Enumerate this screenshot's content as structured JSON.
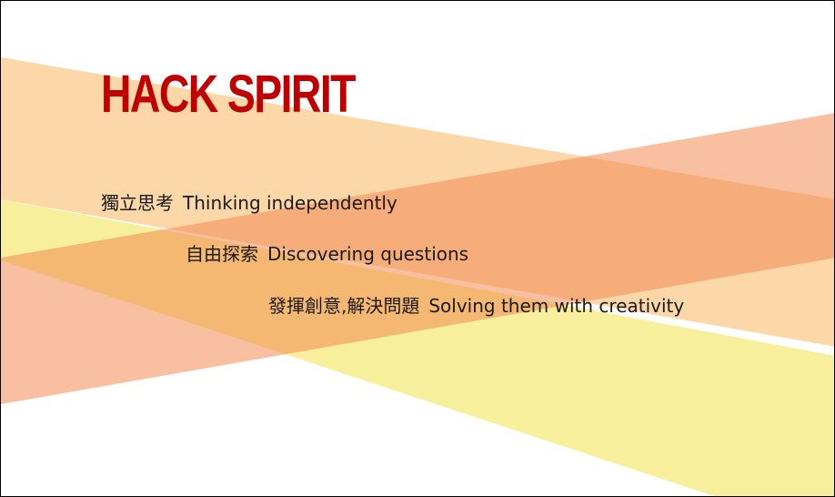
{
  "title": "HACK SPIRIT",
  "lines": [
    {
      "zh": "獨立思考",
      "en": "Thinking independently"
    },
    {
      "zh": "自由探索",
      "en": "Discovering questions"
    },
    {
      "zh": "發揮創意,解決問題",
      "en": "Solving them with creativity"
    }
  ],
  "colors": {
    "title": "#c00000",
    "band_peach": "#f9c67e",
    "band_yellow": "#f3e24a",
    "band_salmon": "#f4996b",
    "text": "#1a1a1a"
  }
}
